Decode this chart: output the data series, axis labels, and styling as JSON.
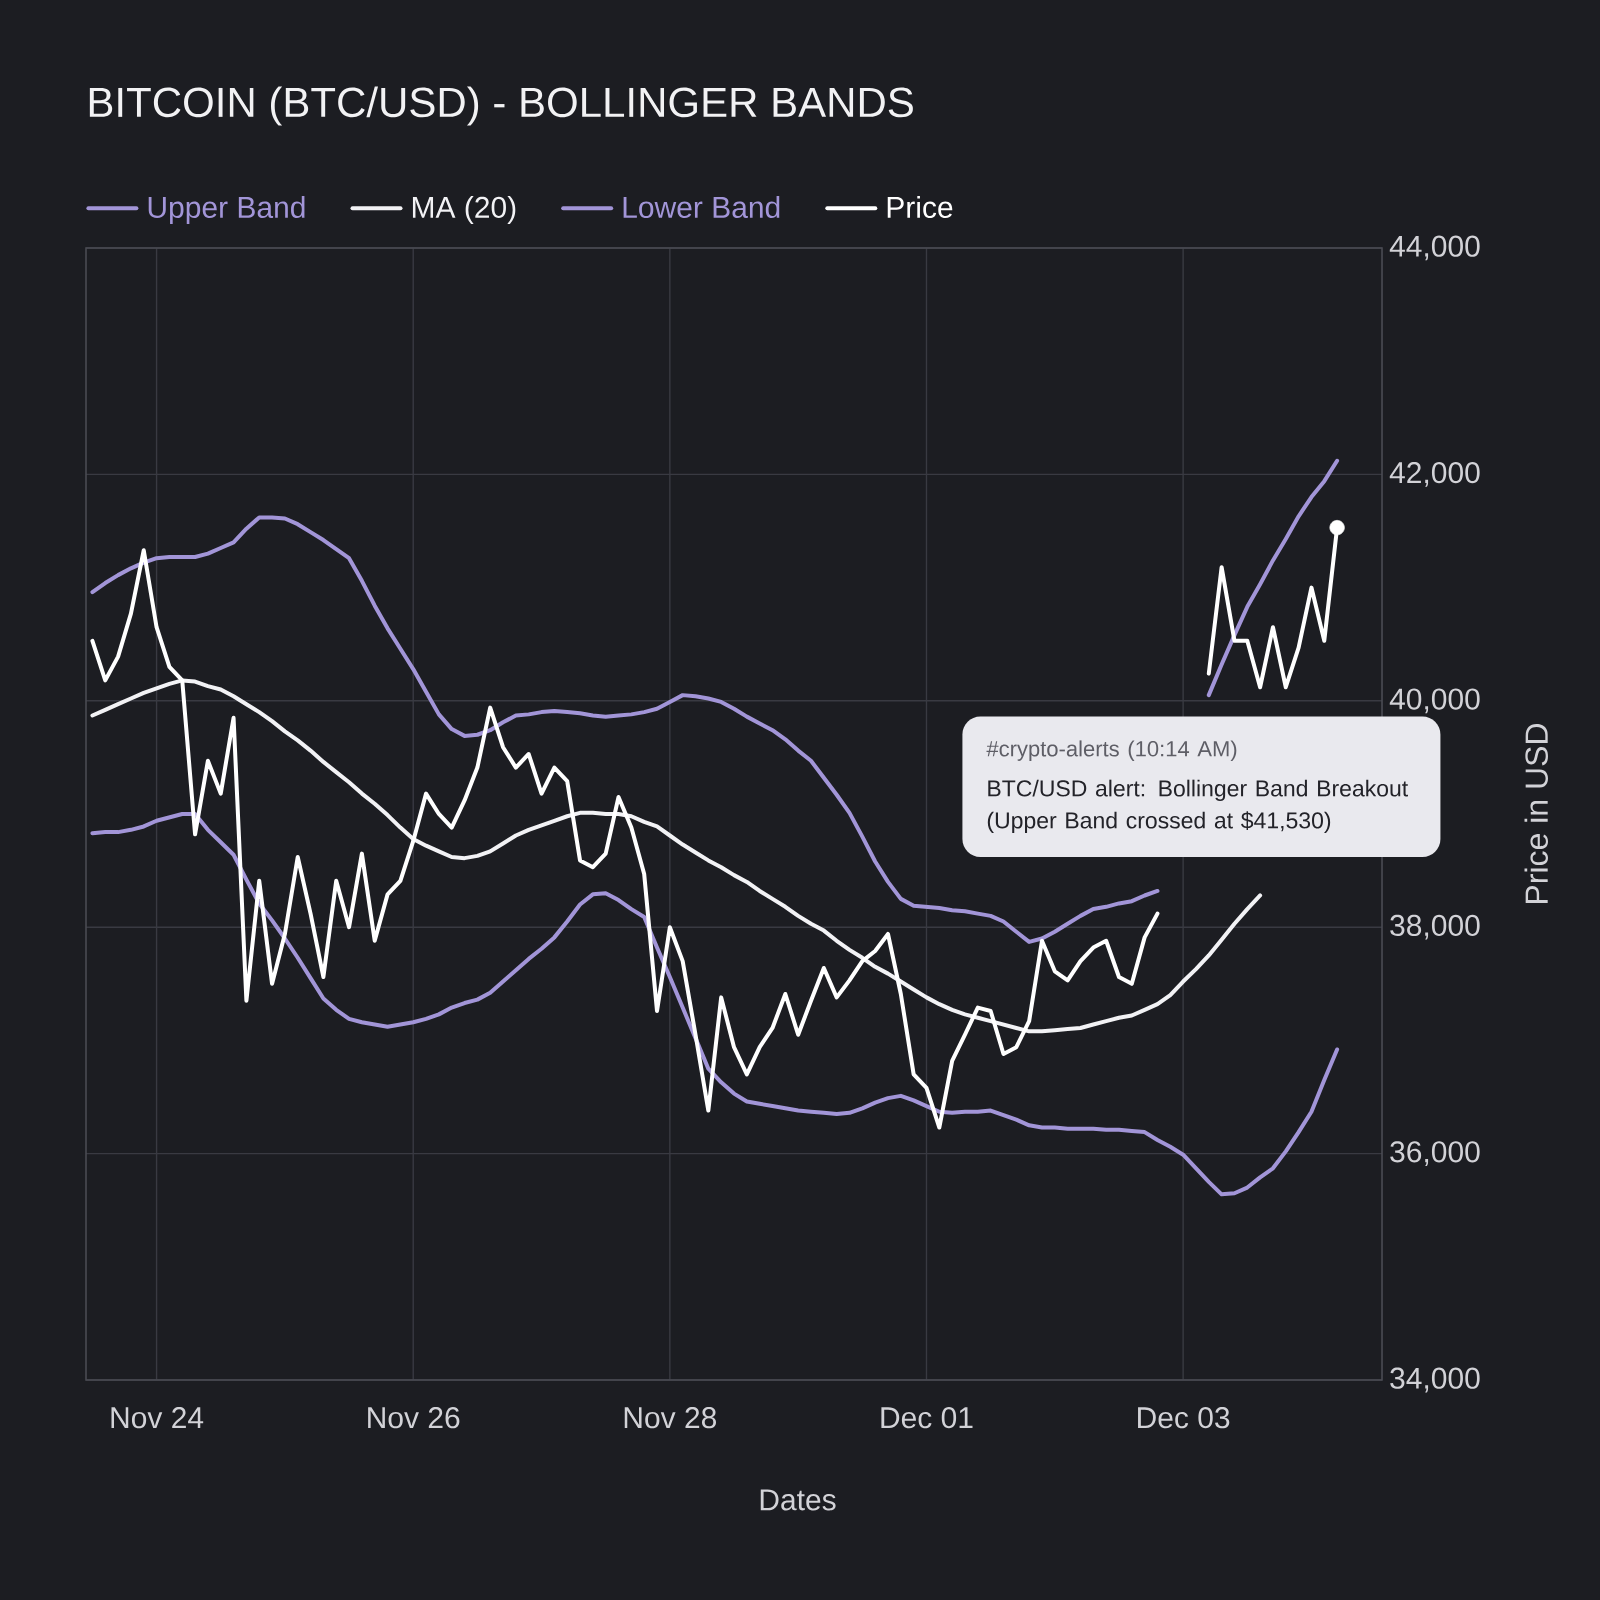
{
  "chart_data": {
    "type": "line",
    "title": "BITCOIN (BTC/USD) - BOLLINGER BANDS",
    "xlabel": "Dates",
    "ylabel": "Price in USD",
    "categories": [
      null,
      null,
      null,
      null,
      null,
      "Nov 24",
      null,
      null,
      null,
      null,
      null,
      null,
      null,
      null,
      null,
      null,
      null,
      null,
      null,
      null,
      null,
      null,
      null,
      null,
      null,
      "Nov 26",
      null,
      null,
      null,
      null,
      null,
      null,
      null,
      null,
      null,
      null,
      null,
      null,
      null,
      null,
      null,
      null,
      null,
      null,
      null,
      "Nov 28",
      null,
      null,
      null,
      null,
      null,
      null,
      null,
      null,
      null,
      null,
      null,
      null,
      null,
      null,
      null,
      null,
      null,
      null,
      null,
      "Dec 01",
      null,
      null,
      null,
      null,
      null,
      null,
      null,
      null,
      null,
      null,
      null,
      null,
      null,
      null,
      null,
      null,
      null,
      null,
      null,
      "Dec 03",
      null,
      null,
      null,
      null,
      null,
      null,
      null,
      null,
      null,
      null,
      null,
      null,
      null,
      null,
      null
    ],
    "ylim": [
      34000,
      44000
    ],
    "yticks": [
      {
        "value": 34000,
        "label": "34,000"
      },
      {
        "value": 36000,
        "label": "36,000"
      },
      {
        "value": 38000,
        "label": "38,000"
      },
      {
        "value": 40000,
        "label": "40,000"
      },
      {
        "value": 42000,
        "label": "42,000"
      },
      {
        "value": 44000,
        "label": "44,000"
      }
    ],
    "grid": true,
    "legend": "top left",
    "series": [
      {
        "name": "Upper Band",
        "color": "#a295d8",
        "values": [
          40960,
          41040,
          41110,
          41170,
          41220,
          41260,
          41270,
          41270,
          41270,
          41300,
          41350,
          41400,
          41520,
          41620,
          41620,
          41610,
          41560,
          41490,
          41420,
          41340,
          41260,
          41060,
          40840,
          40640,
          40460,
          40280,
          40080,
          39880,
          39750,
          39690,
          39700,
          39740,
          39810,
          39870,
          39880,
          39900,
          39910,
          39900,
          39890,
          39870,
          39860,
          39870,
          39880,
          39900,
          39930,
          39990,
          40050,
          40040,
          40020,
          39990,
          39930,
          39860,
          39800,
          39740,
          39660,
          39560,
          39470,
          39320,
          39170,
          39010,
          38800,
          38580,
          38400,
          38250,
          38190,
          38180,
          38170,
          38150,
          38140,
          38120,
          38100,
          38050,
          37960,
          37870,
          37900,
          37960,
          38030,
          38100,
          38160,
          38180,
          38210,
          38230,
          38280,
          38320,
          null,
          null,
          null,
          40050,
          40320,
          40580,
          40830,
          41030,
          41240,
          41430,
          41630,
          41800,
          41940,
          42120,
          null,
          null,
          null
        ]
      },
      {
        "name": "MA (20)",
        "color": "#f2f2f5",
        "values": [
          39870,
          39920,
          39970,
          40020,
          40070,
          40110,
          40150,
          40180,
          40170,
          40130,
          40100,
          40040,
          39970,
          39900,
          39820,
          39730,
          39650,
          39560,
          39460,
          39370,
          39280,
          39180,
          39090,
          38990,
          38880,
          38780,
          38720,
          38670,
          38620,
          38610,
          38630,
          38670,
          38740,
          38810,
          38860,
          38900,
          38940,
          38980,
          39010,
          39010,
          39000,
          39000,
          38980,
          38930,
          38890,
          38810,
          38730,
          38660,
          38590,
          38530,
          38460,
          38400,
          38320,
          38250,
          38180,
          38100,
          38030,
          37970,
          37880,
          37800,
          37730,
          37650,
          37590,
          37520,
          37450,
          37380,
          37320,
          37270,
          37230,
          37200,
          37170,
          37140,
          37110,
          37080,
          37080,
          37090,
          37100,
          37110,
          37140,
          37170,
          37200,
          37220,
          37270,
          37320,
          37400,
          37520,
          37630,
          37750,
          37890,
          38030,
          38160,
          38280,
          null,
          null,
          null,
          null,
          null,
          null,
          null,
          null,
          null
        ]
      },
      {
        "name": "Lower Band",
        "color": "#a295d8",
        "values": [
          38830,
          38840,
          38840,
          38860,
          38890,
          38940,
          38970,
          39000,
          39000,
          38860,
          38750,
          38640,
          38420,
          38210,
          38060,
          37900,
          37730,
          37550,
          37370,
          37270,
          37190,
          37160,
          37140,
          37120,
          37140,
          37160,
          37190,
          37230,
          37290,
          37330,
          37360,
          37420,
          37520,
          37620,
          37720,
          37810,
          37910,
          38050,
          38200,
          38290,
          38300,
          38240,
          38160,
          38090,
          37820,
          37560,
          37290,
          37020,
          36750,
          36630,
          36530,
          36460,
          36440,
          36420,
          36400,
          36380,
          36370,
          36360,
          36350,
          36360,
          36400,
          36450,
          36490,
          36510,
          36470,
          36420,
          36370,
          36360,
          36370,
          36370,
          36380,
          36340,
          36300,
          36250,
          36230,
          36230,
          36220,
          36220,
          36220,
          36210,
          36210,
          36200,
          36190,
          36120,
          36060,
          35990,
          35870,
          35750,
          35640,
          35650,
          35700,
          35790,
          35870,
          36020,
          36190,
          36370,
          36650,
          36920,
          null,
          null,
          null
        ]
      },
      {
        "name": "Price",
        "color": "#ffffff",
        "values": [
          40530,
          40180,
          40390,
          40770,
          41330,
          40650,
          40300,
          40180,
          38820,
          39470,
          39180,
          39850,
          37350,
          38410,
          37500,
          37940,
          38620,
          38120,
          37560,
          38410,
          38000,
          38650,
          37880,
          38290,
          38410,
          38760,
          39180,
          39000,
          38880,
          39120,
          39410,
          39940,
          39590,
          39410,
          39530,
          39180,
          39410,
          39290,
          38590,
          38530,
          38650,
          39150,
          38880,
          38470,
          37260,
          38000,
          37700,
          37050,
          36380,
          37380,
          36940,
          36700,
          36940,
          37110,
          37410,
          37050,
          37350,
          37640,
          37380,
          37530,
          37700,
          37790,
          37940,
          37410,
          36700,
          36580,
          36230,
          36820,
          37050,
          37290,
          37260,
          36880,
          36940,
          37170,
          37880,
          37610,
          37530,
          37700,
          37820,
          37880,
          37560,
          37500,
          37910,
          38120,
          null,
          null,
          null,
          40240,
          41180,
          40530,
          40530,
          40120,
          40650,
          40120,
          40470,
          41000,
          40530,
          41530,
          null,
          null,
          null
        ]
      },
      {
        "type": "scatter",
        "marker": "circle",
        "color": "#ffffff",
        "values": [
          null,
          null,
          null,
          null,
          null,
          null,
          null,
          null,
          null,
          null,
          null,
          null,
          null,
          null,
          null,
          null,
          null,
          null,
          null,
          null,
          null,
          null,
          null,
          null,
          null,
          null,
          null,
          null,
          null,
          null,
          null,
          null,
          null,
          null,
          null,
          null,
          null,
          null,
          null,
          null,
          null,
          null,
          null,
          null,
          null,
          null,
          null,
          null,
          null,
          null,
          null,
          null,
          null,
          null,
          null,
          null,
          null,
          null,
          null,
          null,
          null,
          null,
          null,
          null,
          null,
          null,
          null,
          null,
          null,
          null,
          null,
          null,
          null,
          null,
          null,
          null,
          null,
          null,
          null,
          null,
          null,
          null,
          null,
          null,
          null,
          null,
          null,
          null,
          null,
          null,
          null,
          null,
          null,
          null,
          null,
          null,
          null,
          41530,
          null,
          null,
          null
        ]
      }
    ],
    "annotations": [
      "#crypto-alerts (10:14 AM)",
      "BTC/USD alert: Bollinger Band Breakout (Upper Band crossed at $41,530)"
    ]
  }
}
